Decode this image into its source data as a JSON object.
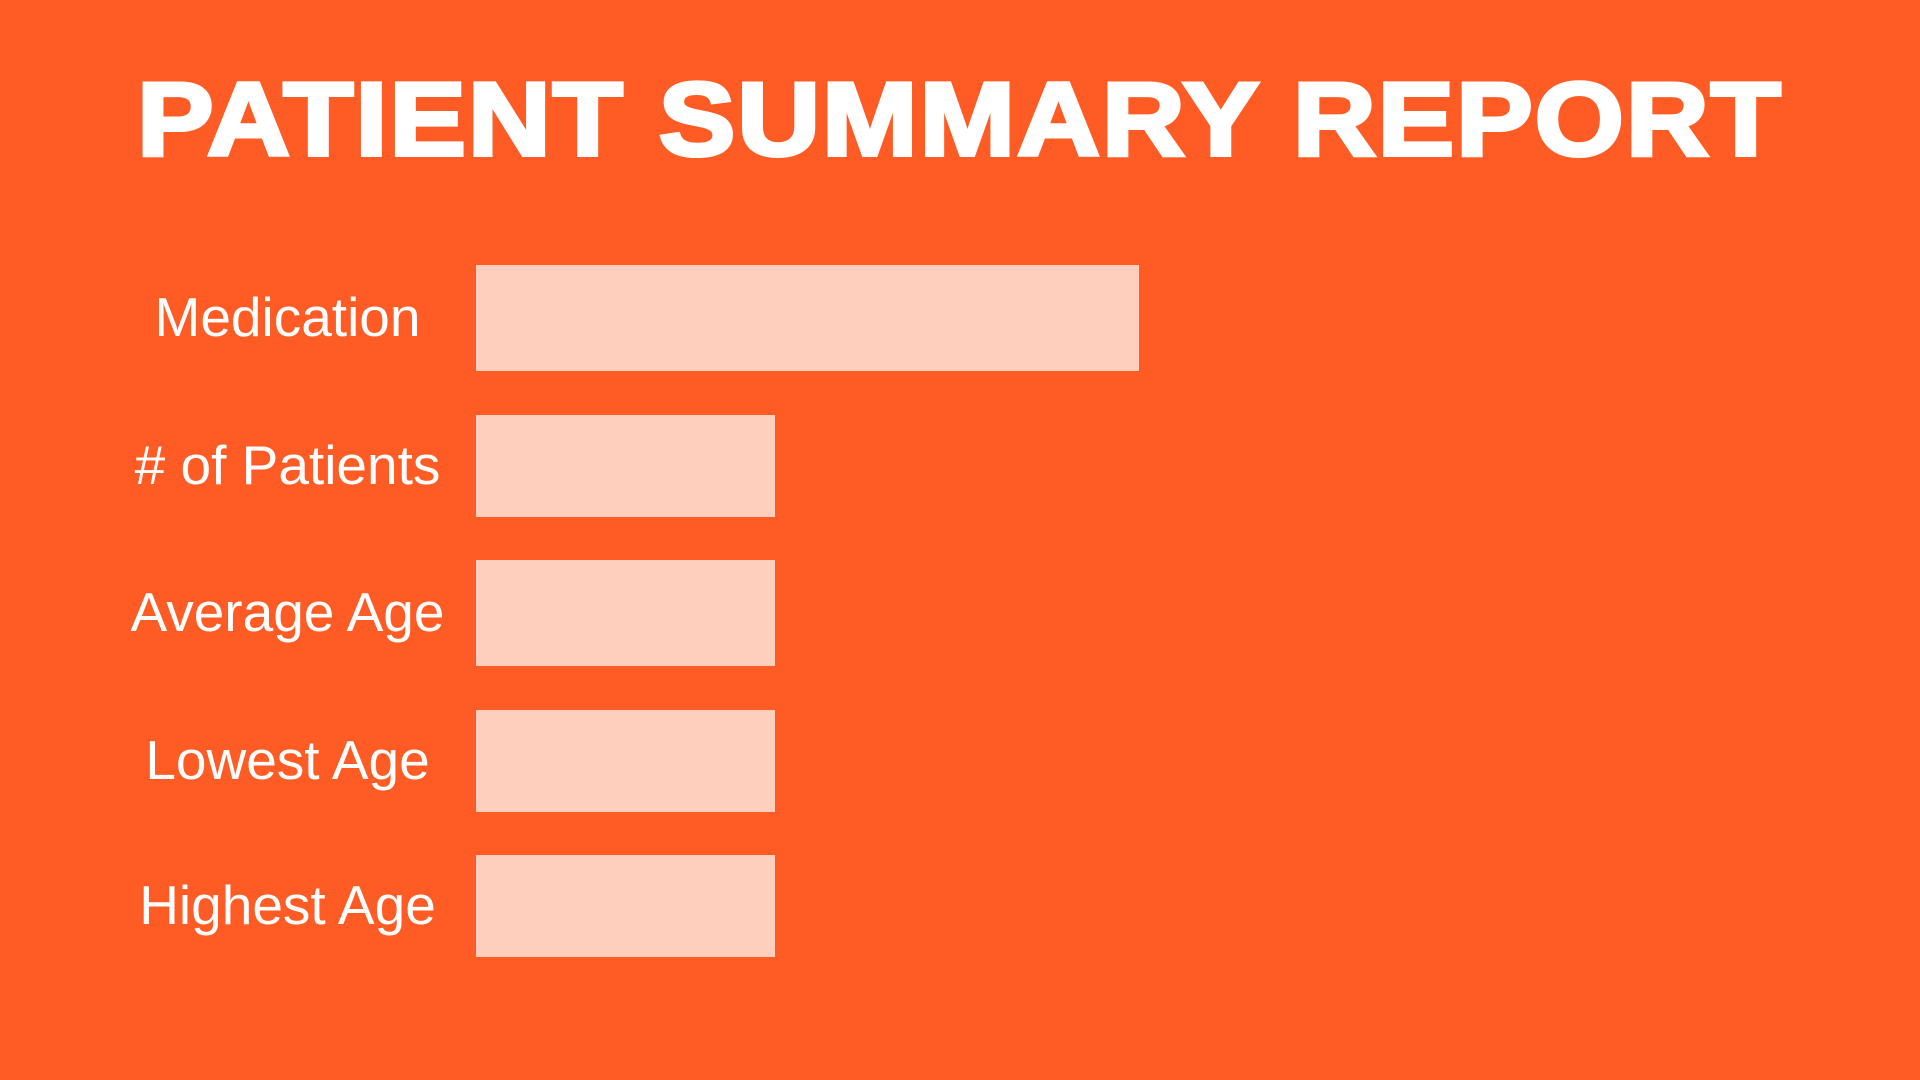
{
  "title": "PATIENT SUMMARY REPORT",
  "colors": {
    "background": "#FF5B24",
    "field": "#FECFBC",
    "text": "#FFFFFF"
  },
  "fields": [
    {
      "label": "Medication",
      "value": ""
    },
    {
      "label": "# of Patients",
      "value": ""
    },
    {
      "label": "Average Age",
      "value": ""
    },
    {
      "label": "Lowest Age",
      "value": ""
    },
    {
      "label": "Highest Age",
      "value": ""
    }
  ]
}
